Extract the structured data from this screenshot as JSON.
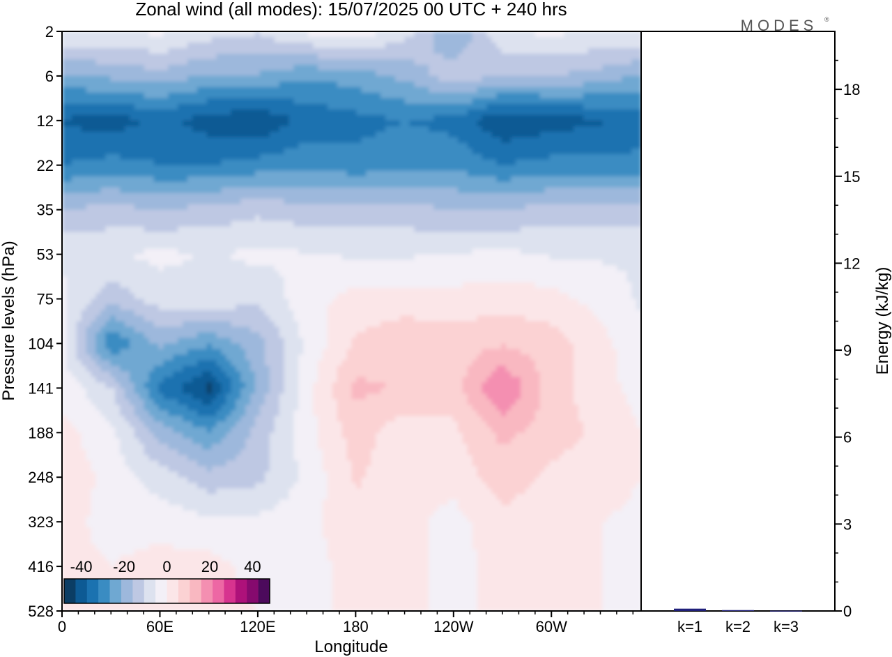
{
  "chart_data": [
    {
      "type": "heatmap",
      "title": "Zonal wind (all modes):  15/07/2025  00 UTC  + 240 hrs",
      "xlabel": "Longitude",
      "ylabel": "Pressure levels (hPa)",
      "x_ticks": [
        "0",
        "60E",
        "120E",
        "180",
        "120W",
        "60W"
      ],
      "x_range": [
        0,
        355
      ],
      "y_ticks": [
        "2",
        "6",
        "12",
        "22",
        "35",
        "53",
        "75",
        "104",
        "141",
        "188",
        "248",
        "323",
        "416",
        "528"
      ],
      "colorbar": {
        "tick_labels": [
          "-40",
          "-20",
          "0",
          "20",
          "40"
        ],
        "range": [
          -48,
          48
        ],
        "colors": [
          "#0b3d64",
          "#0d5a94",
          "#1b72b0",
          "#3a8cc2",
          "#6fa8d2",
          "#9db8dc",
          "#bec8e3",
          "#dde2ef",
          "#f3f0f7",
          "#fbe6e8",
          "#fbd2d3",
          "#f9b8c1",
          "#f48fb1",
          "#ed67a4",
          "#d7338f",
          "#ae117a",
          "#860a6e",
          "#4c0a5c"
        ]
      },
      "z_grid": {
        "lons": [
          0,
          30,
          60,
          90,
          120,
          150,
          180,
          210,
          240,
          270,
          300,
          330,
          355
        ],
        "levels": [
          "2",
          "6",
          "12",
          "22",
          "35",
          "53",
          "75",
          "104",
          "141",
          "188",
          "248",
          "323",
          "416",
          "528"
        ],
        "values": [
          [
            -5,
            -6,
            -4,
            -8,
            -10,
            -4,
            -2,
            -8,
            -22,
            -6,
            -4,
            -6,
            -5
          ],
          [
            -22,
            -20,
            -18,
            -22,
            -22,
            -26,
            -24,
            -20,
            -12,
            -16,
            -16,
            -18,
            -22
          ],
          [
            -38,
            -40,
            -36,
            -40,
            -42,
            -36,
            -34,
            -32,
            -34,
            -42,
            -40,
            -38,
            -36
          ],
          [
            -32,
            -30,
            -32,
            -32,
            -30,
            -28,
            -30,
            -28,
            -28,
            -32,
            -30,
            -30,
            -30
          ],
          [
            -16,
            -14,
            -16,
            -14,
            -12,
            -14,
            -14,
            -14,
            -16,
            -16,
            -14,
            -14,
            -14
          ],
          [
            -6,
            -6,
            -4,
            -6,
            -4,
            -5,
            -6,
            -6,
            -5,
            -4,
            -6,
            -6,
            -6
          ],
          [
            -4,
            -14,
            -8,
            -6,
            -10,
            -2,
            2,
            2,
            2,
            3,
            2,
            -2,
            -6
          ],
          [
            -4,
            -32,
            -20,
            -26,
            -18,
            -4,
            6,
            10,
            8,
            10,
            8,
            2,
            -4
          ],
          [
            -2,
            -10,
            -34,
            -44,
            -20,
            -2,
            12,
            10,
            8,
            22,
            8,
            2,
            -2
          ],
          [
            2,
            -4,
            -18,
            -26,
            -14,
            -2,
            8,
            2,
            4,
            12,
            8,
            4,
            0
          ],
          [
            4,
            -2,
            -8,
            -14,
            -12,
            -4,
            6,
            2,
            2,
            8,
            4,
            2,
            0
          ],
          [
            2,
            -2,
            -2,
            -4,
            -4,
            -2,
            4,
            2,
            -2,
            4,
            2,
            0,
            -1
          ],
          [
            2,
            0,
            2,
            2,
            -2,
            -2,
            2,
            2,
            -2,
            2,
            2,
            0,
            -1
          ],
          [
            2,
            0,
            4,
            2,
            0,
            -2,
            2,
            2,
            -2,
            2,
            2,
            0,
            -1
          ]
        ]
      }
    },
    {
      "type": "bar",
      "categories": [
        "k=1",
        "k=2",
        "k=3"
      ],
      "values": [
        0.08,
        0.03,
        0.01
      ],
      "ylabel": "Energy (kJ/kg)",
      "y_ticks": [
        "0",
        "3",
        "6",
        "9",
        "12",
        "15",
        "18"
      ],
      "ylim": [
        0,
        20
      ],
      "bar_color": "#1f1f7a"
    }
  ],
  "brand": "MODES"
}
